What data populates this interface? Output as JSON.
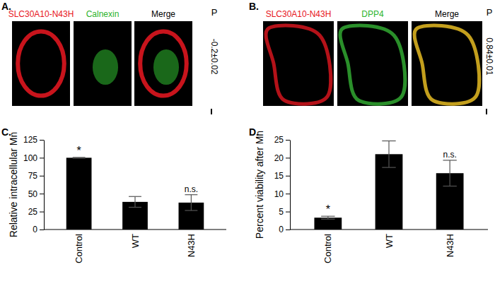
{
  "image_panels": [
    {
      "label": "A.",
      "channels": [
        "SLC30A10-N43H",
        "Calnexin",
        "Merge"
      ],
      "coefficient_label": "P",
      "coefficient": "-0.2±0.02"
    },
    {
      "label": "B.",
      "channels": [
        "SLC30A10-N43H",
        "DPP4",
        "Merge"
      ],
      "coefficient_label": "P",
      "coefficient": "0.84±0.01"
    }
  ],
  "chart_data": [
    {
      "type": "bar",
      "panel": "C.",
      "y_label": "Relative intracellular Mn",
      "categories": [
        "Control",
        "WT",
        "N43H"
      ],
      "values": [
        100,
        38.5,
        37.5
      ],
      "errors": [
        0.5,
        7.5,
        11
      ],
      "significance": [
        "*",
        null,
        "n.s."
      ],
      "color": "#000000",
      "ylim": [
        0,
        125
      ],
      "yticks": [
        0,
        25,
        50,
        75,
        100,
        125
      ],
      "grid": false
    },
    {
      "type": "bar",
      "panel": "D.",
      "y_label": "Percent viability after Mn",
      "categories": [
        "Control",
        "WT",
        "N43H"
      ],
      "values": [
        3.3,
        21,
        15.7
      ],
      "errors": [
        0.4,
        3.7,
        3.6
      ],
      "significance": [
        "*",
        null,
        "n.s."
      ],
      "color": "#000000",
      "ylim": [
        0,
        25
      ],
      "yticks": [
        0,
        5,
        10,
        15,
        20,
        25
      ],
      "grid": false
    }
  ]
}
